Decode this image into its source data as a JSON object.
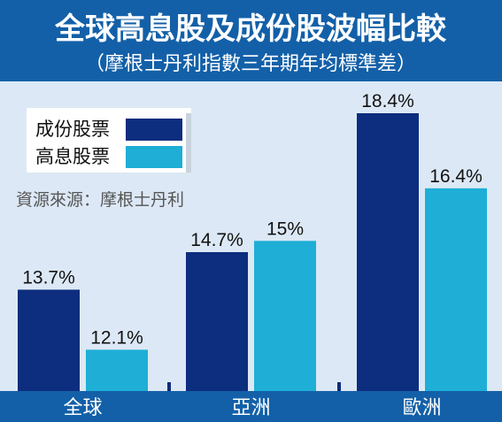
{
  "header": {
    "title": "全球高息股及成份股波幅比較",
    "subtitle": "（摩根士丹利指數三年期年均標準差）"
  },
  "source": "資源來源：摩根士丹利",
  "colors": {
    "header_bg": "#1360a8",
    "plot_bg": "#dce8f5",
    "series_dark": "#0d2d7e",
    "series_light": "#1eaed6",
    "axis_band": "#1360a8"
  },
  "chart_data": {
    "type": "bar",
    "categories": [
      "全球",
      "亞洲",
      "歐洲"
    ],
    "series": [
      {
        "name": "成份股票",
        "values": [
          13.7,
          14.7,
          18.4
        ],
        "labels": [
          "13.7%",
          "14.7%",
          "18.4%"
        ]
      },
      {
        "name": "高息股票",
        "values": [
          12.1,
          15,
          16.4
        ],
        "labels": [
          "12.1%",
          "15%",
          "16.4%"
        ]
      }
    ],
    "title": "全球高息股及成份股波幅比較",
    "subtitle": "（摩根士丹利指數三年期年均標準差）",
    "ylim": [
      11,
      18.4
    ],
    "legend": "top-left",
    "grid": false
  }
}
